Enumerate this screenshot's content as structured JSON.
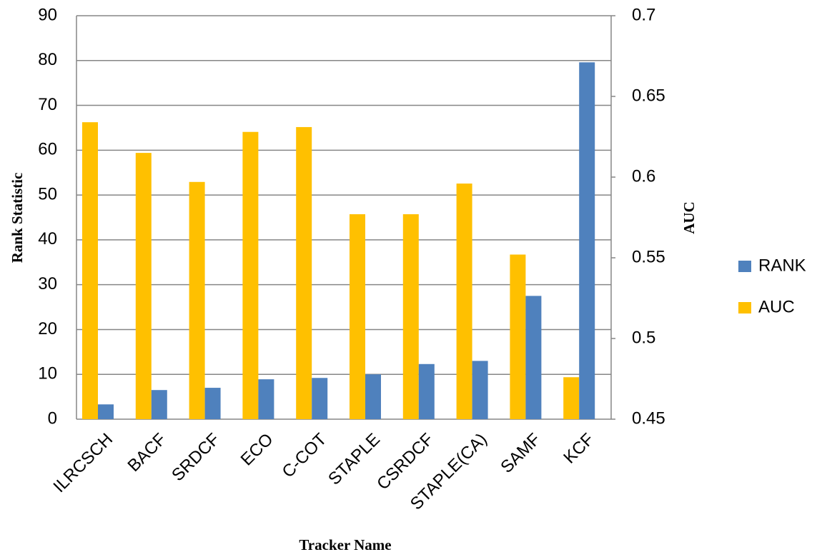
{
  "chart_data": {
    "type": "bar",
    "xlabel": "Tracker Name",
    "ylabel": "Rank Statistic",
    "y2label": "AUC",
    "categories": [
      "ILRCSCH",
      "BACF",
      "SRDCF",
      "ECO",
      "C-COT",
      "STAPLE",
      "CSRDCF",
      "STAPLE(CA)",
      "SAMF",
      "KCF"
    ],
    "series": [
      {
        "name": "RANK",
        "color": "#4f81bd",
        "values": [
          3.3,
          6.5,
          7,
          8.9,
          9.2,
          10,
          12.3,
          13,
          27.5,
          79.6
        ]
      },
      {
        "name": "AUC",
        "color": "#ffc000",
        "axis": "y2",
        "values": [
          0.634,
          0.615,
          0.597,
          0.628,
          0.631,
          0.577,
          0.577,
          0.596,
          0.552,
          0.476
        ]
      }
    ],
    "ylim": [
      0,
      90
    ],
    "yticks": [
      0,
      10,
      20,
      30,
      40,
      50,
      60,
      70,
      80,
      90
    ],
    "y2lim": [
      0.45,
      0.7
    ],
    "y2ticks": [
      0.45,
      0.5,
      0.55,
      0.6,
      0.65,
      0.7
    ],
    "grid": true,
    "legend": "right"
  }
}
